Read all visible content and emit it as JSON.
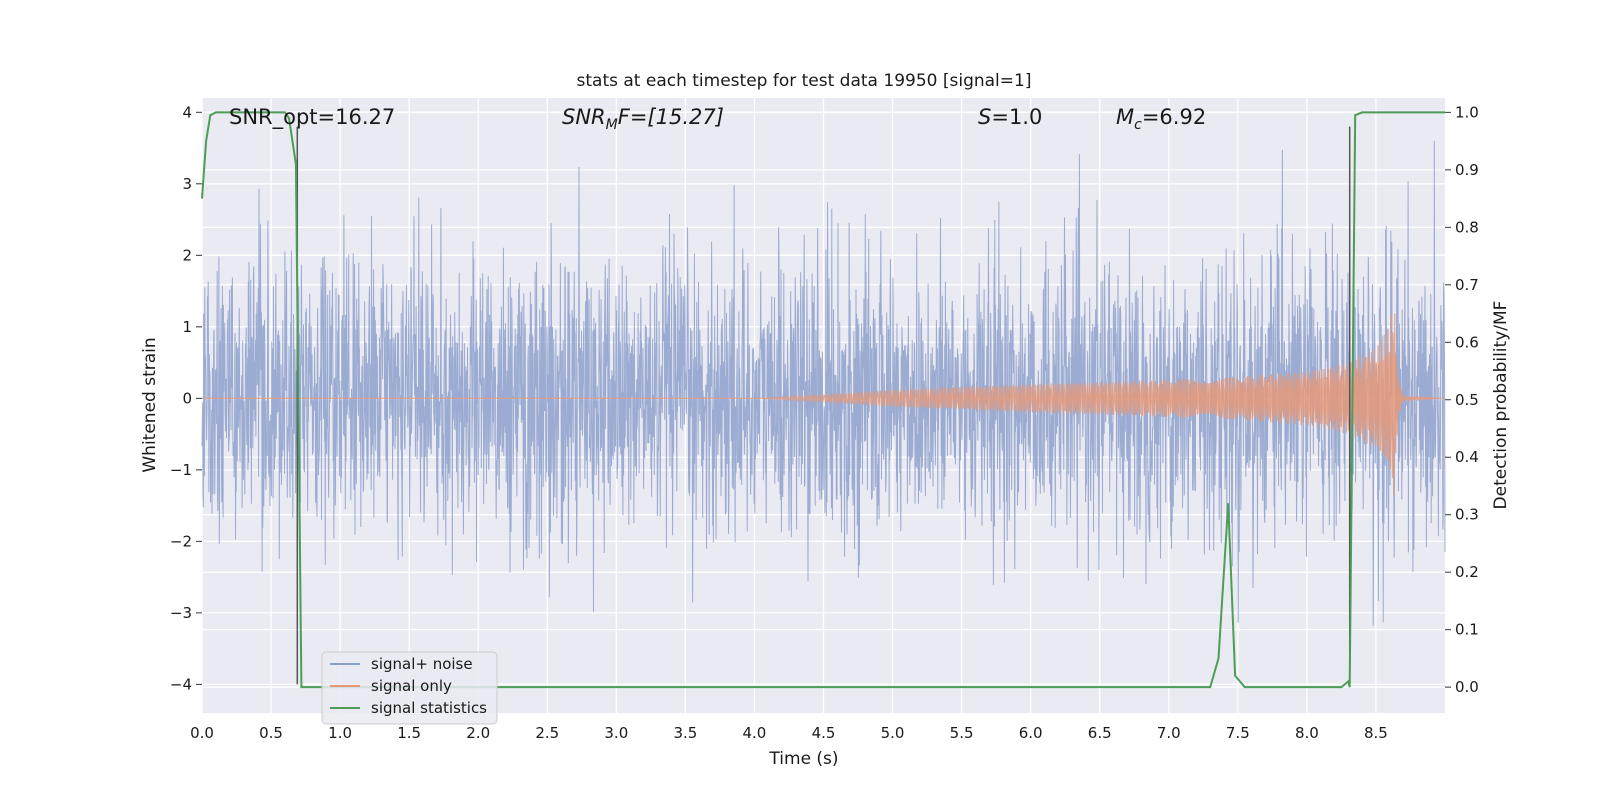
{
  "chart_data": {
    "type": "line",
    "title": "stats at each timestep for test data 19950 [signal=1]",
    "xlabel": "Time (s)",
    "ylabel": "Whitened strain",
    "ylabel_right": "Detection probability/MF",
    "xlim": [
      0,
      9.0
    ],
    "ylim": [
      -4.4,
      4.2
    ],
    "ylim_right": [
      -0.045,
      1.025
    ],
    "grid": true,
    "x_ticks": [
      "0.0",
      "0.5",
      "1.0",
      "1.5",
      "2.0",
      "2.5",
      "3.0",
      "3.5",
      "4.0",
      "4.5",
      "5.0",
      "5.5",
      "6.0",
      "6.5",
      "7.0",
      "7.5",
      "8.0",
      "8.5"
    ],
    "y_ticks": [
      "4",
      "3",
      "2",
      "1",
      "0",
      "−1",
      "−2",
      "−3",
      "−4"
    ],
    "y_ticks_right": [
      "1.0",
      "0.9",
      "0.8",
      "0.7",
      "0.6",
      "0.5",
      "0.4",
      "0.3",
      "0.2",
      "0.1",
      "0.0"
    ],
    "annotations": {
      "snr_opt": "SNR_opt=16.27",
      "snr_mf_base": "SNR",
      "snr_mf_sub": "M",
      "snr_mf_rest": "F=[15.27]",
      "s_base": "S",
      "s_rest": "=1.0",
      "mc_base": "M",
      "mc_sub": "c",
      "mc_rest": "=6.92"
    },
    "legend_position": "lower-left",
    "series": [
      {
        "name": "signal+ noise",
        "color": "#8da0cb",
        "envelope": {
          "x": [
            0.0,
            1.0,
            2.0,
            3.0,
            4.0,
            5.0,
            6.0,
            7.0,
            8.0,
            8.9
          ],
          "typical_abs": [
            1.8,
            1.8,
            1.8,
            1.8,
            1.8,
            1.8,
            1.8,
            1.8,
            1.8,
            1.8
          ],
          "max": 3.8,
          "min": -4.0
        },
        "axis": "left"
      },
      {
        "name": "signal only",
        "color": "#e5997a",
        "amplitude": {
          "x": [
            0.0,
            4.0,
            4.5,
            5.0,
            6.0,
            7.0,
            7.5,
            8.0,
            8.3,
            8.5,
            8.6,
            8.63,
            8.66,
            8.7,
            9.0
          ],
          "y": [
            0.0,
            0.0,
            0.05,
            0.12,
            0.2,
            0.26,
            0.3,
            0.38,
            0.5,
            0.7,
            1.0,
            1.45,
            0.3,
            0.03,
            0.0
          ]
        },
        "axis": "left"
      },
      {
        "name": "signal statistics",
        "color": "#4c9e56",
        "x": [
          0.0,
          0.03,
          0.06,
          0.1,
          0.3,
          0.6,
          0.63,
          0.68,
          0.72,
          0.76,
          1.0,
          7.0,
          7.3,
          7.36,
          7.43,
          7.48,
          7.55,
          8.0,
          8.25,
          8.3,
          8.31,
          8.35,
          8.4,
          9.0
        ],
        "y": [
          0.85,
          0.95,
          0.995,
          1.0,
          1.0,
          1.0,
          0.99,
          0.91,
          0.0,
          0.0,
          0.0,
          0.0,
          0.0,
          0.05,
          0.32,
          0.02,
          0.0,
          0.0,
          0.0,
          0.01,
          0.0,
          0.995,
          1.0,
          1.0
        ],
        "axis": "right"
      }
    ],
    "vertical_lines": [
      {
        "x": 0.69,
        "y_top": 3.8,
        "y_bottom": -4.0,
        "color": "#555555"
      },
      {
        "x": 8.31,
        "y_top": 3.8,
        "y_bottom": -4.0,
        "color": "#555555"
      }
    ]
  }
}
